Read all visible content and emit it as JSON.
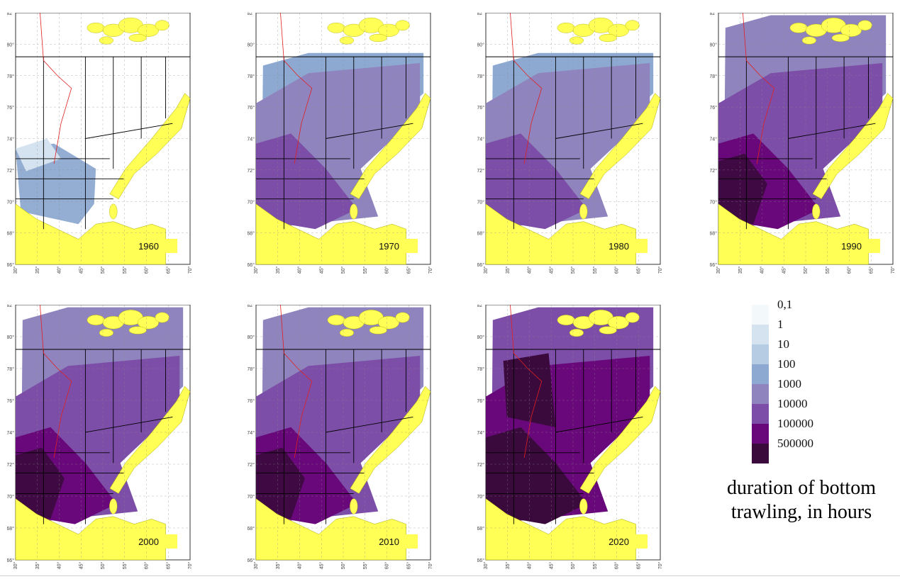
{
  "colors": {
    "land": "#ffff55",
    "background": "#ffffff",
    "border_line": "#000000",
    "route_line": "#e02020",
    "grid": "#888888",
    "legend_scale": [
      "#f3f8fb",
      "#d4e3ef",
      "#b5cce2",
      "#8ea9d1",
      "#8f84be",
      "#7d4ea8",
      "#69087a",
      "#3b0a3d"
    ]
  },
  "axis": {
    "x_ticks": [
      "30°",
      "35°",
      "40°",
      "45°",
      "50°",
      "55°",
      "60°",
      "65°",
      "70°"
    ],
    "y_ticks": [
      "82°",
      "80°",
      "78°",
      "76°",
      "74°",
      "72°",
      "70°",
      "68°",
      "66°"
    ]
  },
  "maps": [
    {
      "year": "1960",
      "dominant_class": "100"
    },
    {
      "year": "1970",
      "dominant_class": "1000"
    },
    {
      "year": "1980",
      "dominant_class": "1000"
    },
    {
      "year": "1990",
      "dominant_class": "10000"
    },
    {
      "year": "2000",
      "dominant_class": "10000"
    },
    {
      "year": "2010",
      "dominant_class": "10000"
    },
    {
      "year": "2020",
      "dominant_class": "100000"
    }
  ],
  "legend": {
    "labels": [
      "0,1",
      "1",
      "10",
      "100",
      "1000",
      "10000",
      "100000",
      "500000"
    ],
    "title_line1": "duration of bottom",
    "title_line2": "trawling, in hours"
  }
}
